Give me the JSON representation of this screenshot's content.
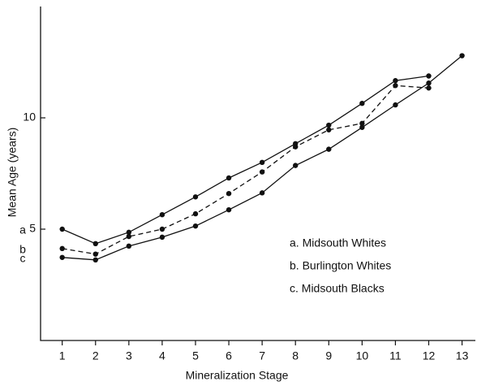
{
  "chart_data": {
    "type": "line",
    "xlabel": "Mineralization Stage",
    "ylabel": "Mean Age (years)",
    "x": [
      1,
      2,
      3,
      4,
      5,
      6,
      7,
      8,
      9,
      10,
      11,
      12,
      13
    ],
    "xlim": [
      0.35,
      13.4
    ],
    "xticks": [
      1,
      2,
      3,
      4,
      5,
      6,
      7,
      8,
      9,
      10,
      11,
      12,
      13
    ],
    "ylim": [
      0,
      15
    ],
    "yticks": [
      5,
      10
    ],
    "series": [
      {
        "name": "a. Midsouth Whites",
        "tag": "a",
        "color": "#111111",
        "dashed": false,
        "values": [
          5.0,
          4.35,
          4.86,
          5.65,
          6.45,
          7.3,
          8.0,
          8.84,
          9.67,
          10.65,
          11.67,
          11.88,
          null
        ]
      },
      {
        "name": "b. Burlington Whites",
        "tag": "b",
        "color": "#111111",
        "dashed": true,
        "values": [
          4.13,
          3.88,
          4.67,
          5.0,
          5.69,
          6.6,
          7.57,
          8.7,
          9.46,
          9.75,
          11.45,
          11.34,
          null
        ]
      },
      {
        "name": "c. Midsouth Blacks",
        "tag": "c",
        "color": "#111111",
        "dashed": false,
        "values": [
          3.73,
          3.62,
          4.24,
          4.64,
          5.14,
          5.87,
          6.63,
          7.86,
          8.59,
          9.57,
          10.58,
          11.56,
          12.79
        ]
      }
    ]
  }
}
